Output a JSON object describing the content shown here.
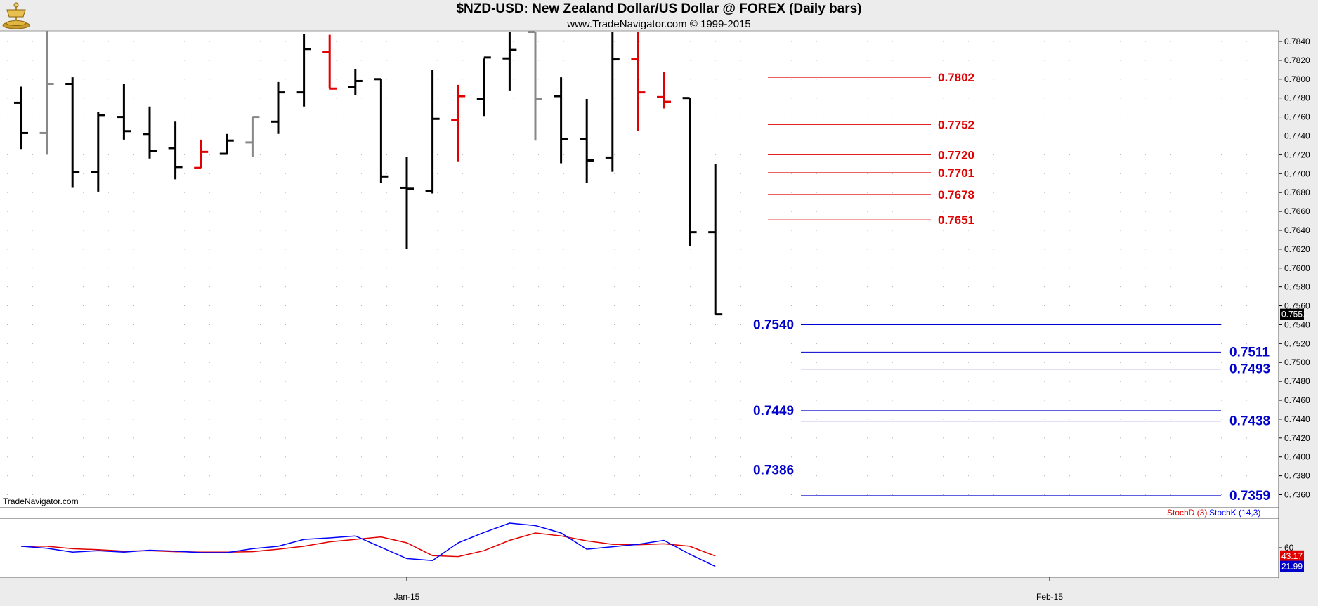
{
  "header": {
    "title": "$NZD-USD:  New Zealand Dollar/US Dollar @ FOREX  (Daily bars)",
    "subtitle": "www.TradeNavigator.com © 1999-2015"
  },
  "watermark": "TradeNavigator.com",
  "colors": {
    "up_bar": "#000000",
    "down_bar": "#e00000",
    "neutral_bar": "#888888",
    "resistance": "#e00000",
    "support": "#0000cc",
    "stoch_d": "#e00000",
    "stoch_k": "#0000ff",
    "price_tag_bg": "#000000",
    "stoch_d_tag_bg": "#e00000",
    "stoch_k_tag_bg": "#0000cc"
  },
  "chart_data": [
    {
      "type": "ohlc",
      "ylim": [
        0.7345,
        0.785
      ],
      "y_ticks": [
        "0.7840",
        "0.7820",
        "0.7800",
        "0.7780",
        "0.7760",
        "0.7740",
        "0.7720",
        "0.7700",
        "0.7680",
        "0.7660",
        "0.7640",
        "0.7620",
        "0.7600",
        "0.7580",
        "0.7560",
        "0.7540",
        "0.7520",
        "0.7500",
        "0.7480",
        "0.7460",
        "0.7440",
        "0.7420",
        "0.7400",
        "0.7380",
        "0.7360"
      ],
      "x_ticks": [
        {
          "label": "Jan-15",
          "bar": 15
        },
        {
          "label": "Feb-15",
          "bar": 40
        }
      ],
      "last_price": "0.7551",
      "bars": [
        {
          "o": 0.7775,
          "h": 0.7792,
          "l": 0.7726,
          "c": 0.7743,
          "color": "up"
        },
        {
          "o": 0.7743,
          "h": 0.786,
          "l": 0.772,
          "c": 0.7795,
          "color": "neutral"
        },
        {
          "o": 0.7795,
          "h": 0.7802,
          "l": 0.7685,
          "c": 0.7702,
          "color": "up"
        },
        {
          "o": 0.7702,
          "h": 0.7765,
          "l": 0.7681,
          "c": 0.7762,
          "color": "up"
        },
        {
          "o": 0.776,
          "h": 0.7795,
          "l": 0.7736,
          "c": 0.7745,
          "color": "up"
        },
        {
          "o": 0.7742,
          "h": 0.7771,
          "l": 0.7716,
          "c": 0.7724,
          "color": "up"
        },
        {
          "o": 0.7727,
          "h": 0.7755,
          "l": 0.7694,
          "c": 0.7707,
          "color": "up"
        },
        {
          "o": 0.7706,
          "h": 0.7736,
          "l": 0.7706,
          "c": 0.7723,
          "color": "down"
        },
        {
          "o": 0.7721,
          "h": 0.7742,
          "l": 0.772,
          "c": 0.7735,
          "color": "up"
        },
        {
          "o": 0.7733,
          "h": 0.776,
          "l": 0.7718,
          "c": 0.776,
          "color": "neutral"
        },
        {
          "o": 0.7755,
          "h": 0.7797,
          "l": 0.7742,
          "c": 0.7786,
          "color": "up"
        },
        {
          "o": 0.7786,
          "h": 0.7848,
          "l": 0.7771,
          "c": 0.7832,
          "color": "up"
        },
        {
          "o": 0.7829,
          "h": 0.7847,
          "l": 0.779,
          "c": 0.779,
          "color": "down"
        },
        {
          "o": 0.7792,
          "h": 0.7811,
          "l": 0.7783,
          "c": 0.7798,
          "color": "up"
        },
        {
          "o": 0.78,
          "h": 0.78,
          "l": 0.769,
          "c": 0.7697,
          "color": "up"
        },
        {
          "o": 0.7685,
          "h": 0.7718,
          "l": 0.762,
          "c": 0.7684,
          "color": "up"
        },
        {
          "o": 0.7682,
          "h": 0.781,
          "l": 0.7679,
          "c": 0.7758,
          "color": "up"
        },
        {
          "o": 0.7757,
          "h": 0.7794,
          "l": 0.7713,
          "c": 0.7782,
          "color": "down"
        },
        {
          "o": 0.7779,
          "h": 0.7822,
          "l": 0.7761,
          "c": 0.7823,
          "color": "up"
        },
        {
          "o": 0.7822,
          "h": 0.785,
          "l": 0.7788,
          "c": 0.7831,
          "color": "up"
        },
        {
          "o": 0.785,
          "h": 0.785,
          "l": 0.7735,
          "c": 0.7779,
          "color": "neutral"
        },
        {
          "o": 0.7782,
          "h": 0.7802,
          "l": 0.7711,
          "c": 0.7737,
          "color": "up"
        },
        {
          "o": 0.7737,
          "h": 0.7779,
          "l": 0.769,
          "c": 0.7714,
          "color": "up"
        },
        {
          "o": 0.7717,
          "h": 0.785,
          "l": 0.7702,
          "c": 0.7821,
          "color": "up"
        },
        {
          "o": 0.7821,
          "h": 0.785,
          "l": 0.7745,
          "c": 0.7786,
          "color": "down"
        },
        {
          "o": 0.7781,
          "h": 0.7808,
          "l": 0.7769,
          "c": 0.7776,
          "color": "down"
        },
        {
          "o": 0.778,
          "h": 0.778,
          "l": 0.7623,
          "c": 0.7638,
          "color": "up"
        },
        {
          "o": 0.7638,
          "h": 0.771,
          "l": 0.7551,
          "c": 0.7551,
          "color": "up"
        }
      ],
      "resistance_levels": [
        "0.7802",
        "0.7752",
        "0.7720",
        "0.7701",
        "0.7678",
        "0.7651"
      ],
      "support_levels": [
        {
          "value": "0.7540",
          "label_side": "left"
        },
        {
          "value": "0.7511",
          "label_side": "right"
        },
        {
          "value": "0.7493",
          "label_side": "right"
        },
        {
          "value": "0.7449",
          "label_side": "left"
        },
        {
          "value": "0.7438",
          "label_side": "right"
        },
        {
          "value": "0.7386",
          "label_side": "left"
        },
        {
          "value": "0.7359",
          "label_side": "right"
        }
      ]
    },
    {
      "type": "line",
      "name": "Stochastic",
      "ylim": [
        0,
        100
      ],
      "y_ticks": [
        "60"
      ],
      "legend": [
        "StochD (3)",
        "StochK (14,3)"
      ],
      "series": [
        {
          "name": "StochD (3)",
          "last_label": "43.17",
          "values": [
            63,
            63,
            58,
            56,
            53,
            54,
            52,
            51,
            51,
            52,
            57,
            63,
            72,
            77,
            82,
            70,
            44,
            42,
            54,
            75,
            90,
            84,
            74,
            67,
            66,
            68,
            63,
            43.17
          ]
        },
        {
          "name": "StochK (14,3)",
          "last_label": "21.99",
          "values": [
            63,
            59,
            51,
            54,
            51,
            55,
            53,
            50,
            50,
            58,
            63,
            77,
            80,
            84,
            61,
            38,
            34,
            70,
            91,
            110,
            105,
            90,
            57,
            62,
            67,
            75,
            47,
            21.99
          ]
        }
      ]
    }
  ]
}
